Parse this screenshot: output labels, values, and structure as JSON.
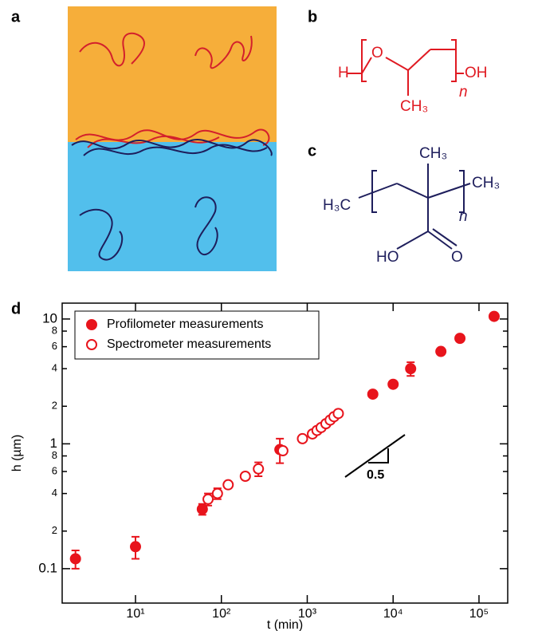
{
  "panels": {
    "a": {
      "label": "a"
    },
    "b": {
      "label": "b",
      "atoms": [
        "H",
        "O",
        "OH",
        "CH₃",
        "n"
      ]
    },
    "c": {
      "label": "c",
      "atoms": [
        "H₃C",
        "CH₃",
        "CH₃",
        "n",
        "HO",
        "O"
      ]
    }
  },
  "chart_data": {
    "type": "scatter",
    "label": "d",
    "xlabel": "t (min)",
    "ylabel": "h (µm)",
    "xscale": "log",
    "yscale": "log",
    "xlim": [
      1.4,
      216000
    ],
    "ylim": [
      0.053,
      13.4
    ],
    "xticks": [
      {
        "value": 10,
        "label": "10¹"
      },
      {
        "value": 100,
        "label": "10²"
      },
      {
        "value": 1000,
        "label": "10³"
      },
      {
        "value": 10000,
        "label": "10⁴"
      },
      {
        "value": 100000,
        "label": "10⁵"
      }
    ],
    "yticks": [
      0.1,
      {
        "value": 0.2,
        "label": "2"
      },
      {
        "value": 0.4,
        "label": "4"
      },
      {
        "value": 0.6,
        "label": "6"
      },
      {
        "value": 0.8,
        "label": "8"
      },
      1,
      2,
      4,
      6,
      8,
      10
    ],
    "legend": "upper left",
    "annotation": "0.5",
    "series": [
      {
        "name": "Profilometer measurements",
        "color": "#e8141c",
        "marker": "filled",
        "x": [
          2,
          10,
          60,
          480,
          5800,
          10000,
          16000,
          36000,
          60000,
          150000
        ],
        "values": [
          0.12,
          0.15,
          0.3,
          0.9,
          2.5,
          3.0,
          4.0,
          5.5,
          7.0,
          10.5
        ],
        "errors": [
          0.02,
          0.03,
          0.03,
          0.2,
          null,
          null,
          0.5,
          null,
          null,
          null
        ]
      },
      {
        "name": "Spectrometer measurements",
        "color": "#e8141c",
        "marker": "open",
        "x": [
          70,
          90,
          120,
          190,
          270,
          520,
          880,
          1150,
          1300,
          1450,
          1650,
          1850,
          2050,
          2300
        ],
        "values": [
          0.36,
          0.4,
          0.47,
          0.55,
          0.63,
          0.88,
          1.1,
          1.2,
          1.28,
          1.35,
          1.45,
          1.55,
          1.65,
          1.75
        ],
        "errors": [
          0.04,
          0.04,
          null,
          null,
          0.08,
          null,
          null,
          null,
          null,
          null,
          null,
          null,
          null,
          null
        ]
      }
    ]
  }
}
